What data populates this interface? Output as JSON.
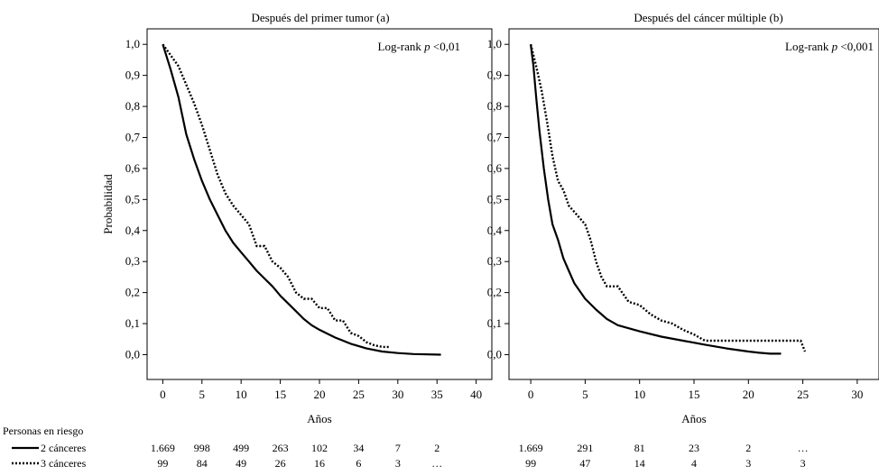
{
  "chart_data": [
    {
      "type": "line",
      "title": "Después del primer tumor (a)",
      "xlabel": "Años",
      "ylabel": "Probabilidad",
      "xlim": [
        -2,
        42
      ],
      "ylim": [
        -0.08,
        1.05
      ],
      "xticks": [
        "0",
        "5",
        "10",
        "15",
        "20",
        "25",
        "30",
        "35",
        "40"
      ],
      "yticks": [
        "0,0",
        "0,1",
        "0,2",
        "0,3",
        "0,4",
        "0,5",
        "0,6",
        "0,7",
        "0,8",
        "0,9",
        "1,0"
      ],
      "annotation": {
        "prefix": "Log-rank ",
        "italic": "p",
        "suffix": " <0,01"
      },
      "series": [
        {
          "name": "2 cánceres",
          "style": "solid",
          "x": [
            0,
            1,
            2,
            3,
            4,
            5,
            6,
            7,
            8,
            9,
            10,
            11,
            12,
            13,
            14,
            15,
            16,
            17,
            18,
            19,
            20,
            22,
            24,
            26,
            28,
            30,
            32,
            35.5
          ],
          "y": [
            1.0,
            0.92,
            0.83,
            0.71,
            0.63,
            0.56,
            0.5,
            0.45,
            0.4,
            0.36,
            0.33,
            0.3,
            0.27,
            0.245,
            0.22,
            0.19,
            0.165,
            0.14,
            0.115,
            0.095,
            0.08,
            0.055,
            0.035,
            0.02,
            0.01,
            0.005,
            0.002,
            0.0
          ]
        },
        {
          "name": "3 cánceres",
          "style": "dotted",
          "x": [
            0,
            2,
            3,
            4,
            5,
            6,
            7,
            8,
            9,
            10,
            11,
            12,
            13,
            14,
            15,
            16,
            17,
            18,
            19,
            20,
            21,
            22,
            23,
            24,
            25,
            26,
            27,
            28,
            29
          ],
          "y": [
            1.0,
            0.93,
            0.87,
            0.81,
            0.74,
            0.66,
            0.58,
            0.52,
            0.48,
            0.45,
            0.42,
            0.35,
            0.35,
            0.3,
            0.28,
            0.25,
            0.2,
            0.18,
            0.18,
            0.15,
            0.15,
            0.11,
            0.11,
            0.07,
            0.06,
            0.04,
            0.03,
            0.025,
            0.025
          ]
        }
      ],
      "risk_table": {
        "x": [
          0,
          5,
          10,
          15,
          20,
          25,
          30,
          35
        ],
        "rows": [
          {
            "series": "2 cánceres",
            "values": [
              "1.669",
              "998",
              "499",
              "263",
              "102",
              "34",
              "7",
              "2"
            ]
          },
          {
            "series": "3 cánceres",
            "values": [
              "99",
              "84",
              "49",
              "26",
              "16",
              "6",
              "3",
              "…"
            ]
          }
        ]
      }
    },
    {
      "type": "line",
      "title": "Después del cáncer múltiple (b)",
      "xlabel": "Años",
      "ylabel": "",
      "xlim": [
        -2,
        32
      ],
      "ylim": [
        -0.08,
        1.05
      ],
      "xticks": [
        "0",
        "5",
        "10",
        "15",
        "20",
        "25",
        "30"
      ],
      "yticks": [
        "0,0",
        "0,1",
        "0,2",
        "0,3",
        "0,4",
        "0,5",
        "0,6",
        "0,7",
        "0,8",
        "0,9",
        "1,0"
      ],
      "annotation": {
        "prefix": "Log-rank ",
        "italic": "p",
        "suffix": " <0,001"
      },
      "series": [
        {
          "name": "2 cánceres",
          "style": "solid",
          "x": [
            0,
            0.25,
            0.5,
            0.8,
            1.2,
            1.6,
            2,
            2.5,
            3,
            3.5,
            4,
            5,
            6,
            7,
            8,
            9,
            10,
            12,
            14,
            16,
            18,
            20,
            21,
            22,
            23
          ],
          "y": [
            1.0,
            0.93,
            0.83,
            0.72,
            0.6,
            0.5,
            0.42,
            0.37,
            0.31,
            0.27,
            0.23,
            0.18,
            0.145,
            0.115,
            0.095,
            0.085,
            0.075,
            0.058,
            0.045,
            0.032,
            0.02,
            0.01,
            0.006,
            0.003,
            0.003
          ]
        },
        {
          "name": "3 cánceres",
          "style": "dotted",
          "x": [
            0,
            0.5,
            1,
            1.5,
            2,
            2.5,
            3,
            3.5,
            4,
            5,
            5.5,
            6,
            6.5,
            7,
            8,
            9,
            10,
            11,
            12,
            13,
            14,
            15,
            16,
            24.8,
            25.2
          ],
          "y": [
            1.0,
            0.93,
            0.85,
            0.75,
            0.64,
            0.56,
            0.53,
            0.48,
            0.46,
            0.42,
            0.37,
            0.3,
            0.25,
            0.22,
            0.22,
            0.17,
            0.16,
            0.13,
            0.11,
            0.1,
            0.08,
            0.065,
            0.045,
            0.045,
            0.01
          ]
        }
      ],
      "risk_table": {
        "x": [
          0,
          5,
          10,
          15,
          20,
          25
        ],
        "rows": [
          {
            "series": "2 cánceres",
            "values": [
              "1.669",
              "291",
              "81",
              "23",
              "2",
              "…"
            ]
          },
          {
            "series": "3 cánceres",
            "values": [
              "99",
              "47",
              "14",
              "4",
              "3",
              "3"
            ]
          }
        ]
      }
    }
  ],
  "risk_header": "Personas en riesgo",
  "risk_legend": [
    {
      "label": "2 cánceres",
      "style": "solid"
    },
    {
      "label": "3 cánceres",
      "style": "dotted"
    }
  ]
}
